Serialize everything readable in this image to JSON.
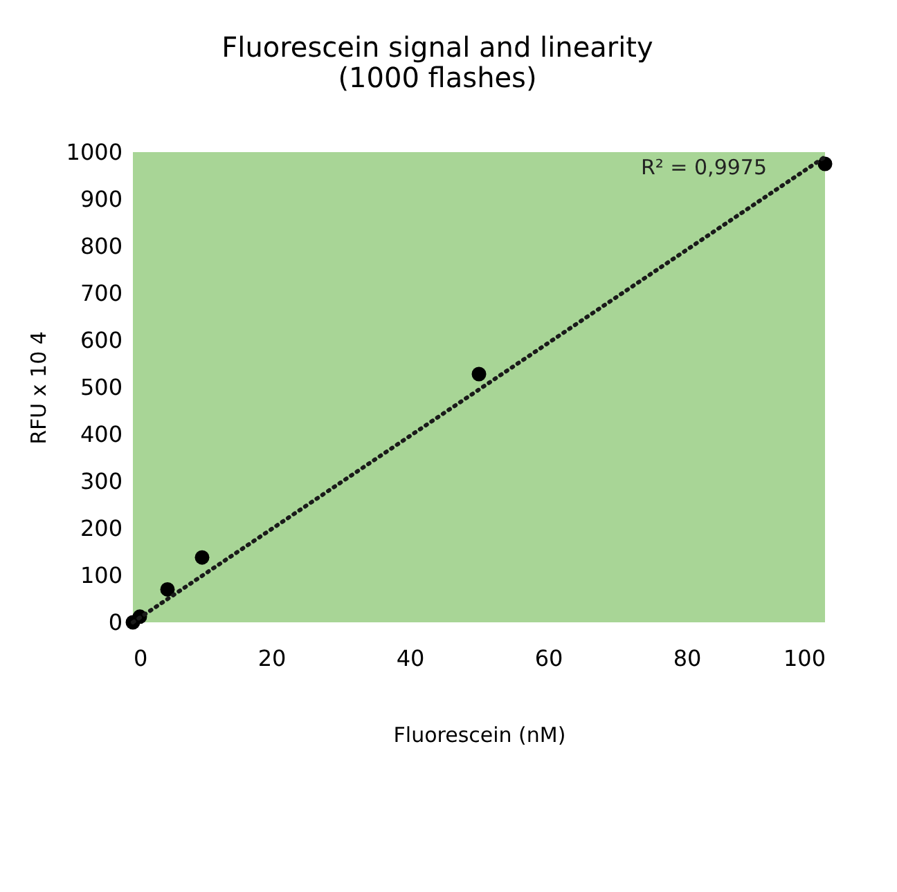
{
  "chart_data": {
    "type": "scatter",
    "title": [
      "Fluorescein signal and linearity",
      "(1000 flashes)"
    ],
    "xlabel": "Fluorescein (nM)",
    "ylabel": "RFU x 10 4",
    "series": [
      {
        "color": "#000000",
        "x": [
          0,
          1,
          5,
          10,
          50,
          100
        ],
        "values": [
          0,
          12,
          70,
          138,
          528,
          975
        ],
        "marker": "circle"
      },
      {
        "type": "line",
        "color": "#1a1a1a",
        "x": [
          0,
          100
        ],
        "values": [
          0,
          990
        ],
        "line_style": "dotted",
        "marker": "none"
      }
    ],
    "annotations": [
      "R² = 0,9975"
    ],
    "xlim": [
      0,
      100
    ],
    "xticks": [
      0,
      20,
      40,
      60,
      80,
      100
    ],
    "ylim": [
      0,
      1000
    ],
    "yticks": [
      0,
      100,
      200,
      300,
      400,
      500,
      600,
      700,
      800,
      900,
      1000
    ],
    "grid": false
  }
}
